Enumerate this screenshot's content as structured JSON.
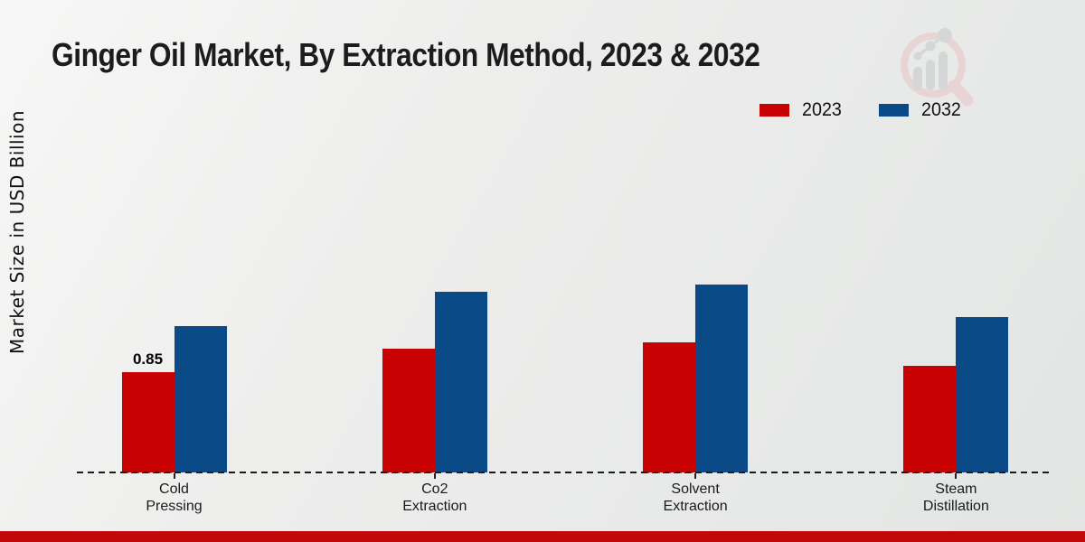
{
  "title": "Ginger Oil Market, By Extraction Method, 2023 & 2032",
  "y_axis_label": "Market Size in USD Billion",
  "watermark_icon": "magnifier-bar-chart-logo",
  "colors": {
    "series_2023": "#c80202",
    "series_2032": "#0a4a86",
    "footer_accent": "#c20909",
    "watermark_ring": "#e9d2d3",
    "watermark_bars": "#d2d4d7"
  },
  "chart_data": {
    "type": "bar",
    "categories": [
      "Cold Pressing",
      "Co2 Extraction",
      "Solvent Extraction",
      "Steam Distillation"
    ],
    "series": [
      {
        "name": "2023",
        "color": "#c80202",
        "values": [
          0.85,
          1.05,
          1.1,
          0.9
        ],
        "value_labels": [
          "0.85",
          "",
          "",
          ""
        ]
      },
      {
        "name": "2032",
        "color": "#0a4a86",
        "values": [
          1.24,
          1.53,
          1.59,
          1.32
        ],
        "value_labels": [
          "",
          "",
          "",
          ""
        ]
      }
    ],
    "title": "Ginger Oil Market, By Extraction Method, 2023 & 2032",
    "xlabel": "",
    "ylabel": "Market Size in USD Billion",
    "ylim": [
      0,
      2
    ],
    "grid": false,
    "legend_position": "upper right",
    "x_axis_style": "dashed-baseline-only",
    "value_axis_ticks_visible": false
  }
}
